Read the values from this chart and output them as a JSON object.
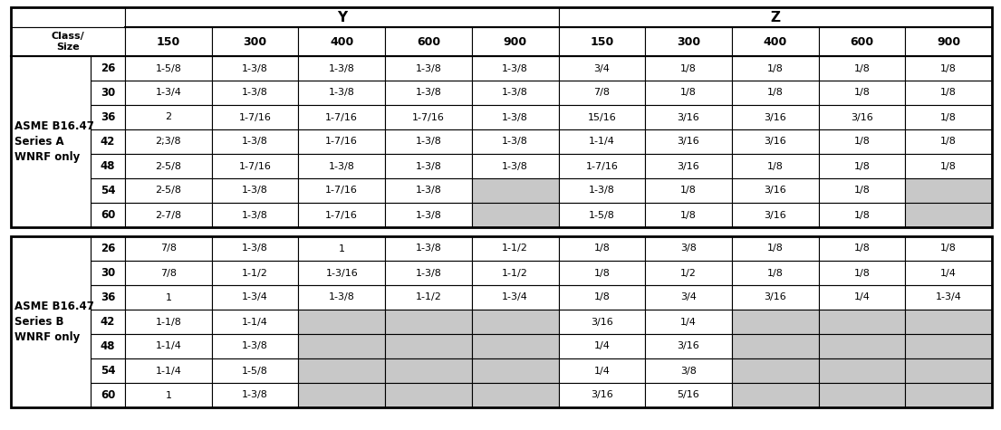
{
  "section_A_label": "ASME B16.47\nSeries A\nWNRF only",
  "section_B_label": "ASME B16.47\nSeries B\nWNRF only",
  "section_A_rows": [
    [
      "26",
      "1-5/8",
      "1-3/8",
      "1-3/8",
      "1-3/8",
      "1-3/8",
      "3/4",
      "1/8",
      "1/8",
      "1/8",
      "1/8"
    ],
    [
      "30",
      "1-3/4",
      "1-3/8",
      "1-3/8",
      "1-3/8",
      "1-3/8",
      "7/8",
      "1/8",
      "1/8",
      "1/8",
      "1/8"
    ],
    [
      "36",
      "2",
      "1-7/16",
      "1-7/16",
      "1-7/16",
      "1-3/8",
      "15/16",
      "3/16",
      "3/16",
      "3/16",
      "1/8"
    ],
    [
      "42",
      "2;3/8",
      "1-3/8",
      "1-7/16",
      "1-3/8",
      "1-3/8",
      "1-1/4",
      "3/16",
      "3/16",
      "1/8",
      "1/8"
    ],
    [
      "48",
      "2-5/8",
      "1-7/16",
      "1-3/8",
      "1-3/8",
      "1-3/8",
      "1-7/16",
      "3/16",
      "1/8",
      "1/8",
      "1/8"
    ],
    [
      "54",
      "2-5/8",
      "1-3/8",
      "1-7/16",
      "1-3/8",
      "",
      "1-3/8",
      "1/8",
      "3/16",
      "1/8",
      ""
    ],
    [
      "60",
      "2-7/8",
      "1-3/8",
      "1-7/16",
      "1-3/8",
      "",
      "1-5/8",
      "1/8",
      "3/16",
      "1/8",
      ""
    ]
  ],
  "section_B_rows": [
    [
      "26",
      "7/8",
      "1-3/8",
      "1",
      "1-3/8",
      "1-1/2",
      "1/8",
      "3/8",
      "1/8",
      "1/8",
      "1/8"
    ],
    [
      "30",
      "7/8",
      "1-1/2",
      "1-3/16",
      "1-3/8",
      "1-1/2",
      "1/8",
      "1/2",
      "1/8",
      "1/8",
      "1/4"
    ],
    [
      "36",
      "1",
      "1-3/4",
      "1-3/8",
      "1-1/2",
      "1-3/4",
      "1/8",
      "3/4",
      "3/16",
      "1/4",
      "1-3/4"
    ],
    [
      "42",
      "1-1/8",
      "1-1/4",
      "",
      "",
      "",
      "3/16",
      "1/4",
      "",
      "",
      ""
    ],
    [
      "48",
      "1-1/4",
      "1-3/8",
      "",
      "",
      "",
      "1/4",
      "3/16",
      "",
      "",
      ""
    ],
    [
      "54",
      "1-1/4",
      "1-5/8",
      "",
      "",
      "",
      "1/4",
      "3/8",
      "",
      "",
      ""
    ],
    [
      "60",
      "1",
      "1-3/8",
      "",
      "",
      "",
      "3/16",
      "5/16",
      "",
      "",
      ""
    ]
  ],
  "gray_color": "#c8c8c8",
  "white_color": "#ffffff",
  "black": "#000000"
}
